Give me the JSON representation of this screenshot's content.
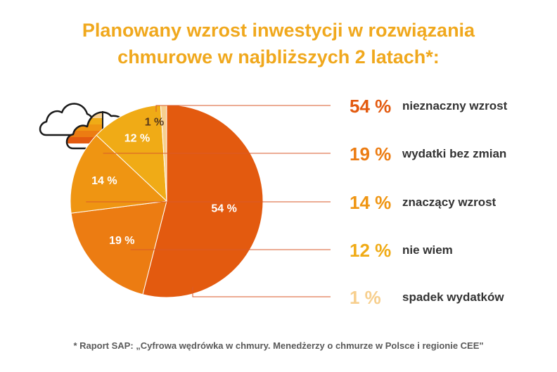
{
  "title": {
    "line1": "Planowany wzrost inwestycji w rozwiązania",
    "line2": "chmurowe w najbliższych 2 latach*:"
  },
  "footnote": "* Raport SAP: „Cyfrowa wędrówka w chmury. Menedżerzy o chmurze w Polsce i regionie CEE\"",
  "chart_data": {
    "type": "pie",
    "title": "Planowany wzrost inwestycji w rozwiązania chmurowe w najbliższych 2 latach*:",
    "unit": "%",
    "categories": [
      "nieznaczny wzrost",
      "wydatki bez zmian",
      "znaczący wzrost",
      "nie wiem",
      "spadek wydatków"
    ],
    "values": [
      54,
      19,
      14,
      12,
      1
    ],
    "slice_labels": [
      "54 %",
      "19 %",
      "14 %",
      "12 %",
      "1 %"
    ],
    "legend_values": [
      "54 %",
      "19 %",
      "14 %",
      "12 %",
      "1 %"
    ],
    "colors": [
      "#e35a0f",
      "#ec7c12",
      "#ef9512",
      "#f0ab16",
      "#f7cf8e"
    ],
    "legend_placement": "right"
  },
  "icon": "cloud-icon"
}
